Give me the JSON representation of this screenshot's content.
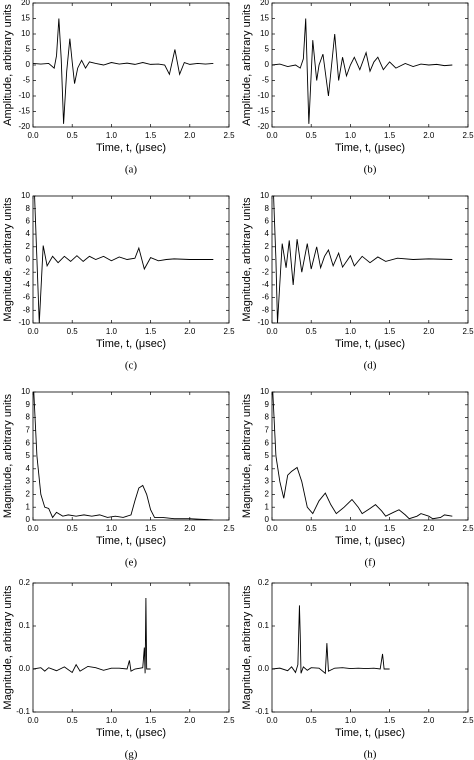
{
  "chart_data": [
    {
      "type": "line",
      "caption": "(a)",
      "xlabel": "Time, t, (μsec)",
      "ylabel": "Amplitude, arbitrary units",
      "color": "#000000",
      "x": [
        0,
        0.1,
        0.2,
        0.27,
        0.3,
        0.33,
        0.36,
        0.39,
        0.43,
        0.47,
        0.5,
        0.53,
        0.57,
        0.62,
        0.67,
        0.72,
        0.8,
        0.9,
        1.0,
        1.1,
        1.2,
        1.3,
        1.4,
        1.5,
        1.6,
        1.68,
        1.74,
        1.81,
        1.87,
        1.93,
        2.0,
        2.1,
        2.2,
        2.3
      ],
      "values": [
        0.5,
        0.3,
        0.5,
        -1,
        3,
        15,
        2,
        -19,
        -2,
        8.5,
        1,
        -6,
        -1,
        1.5,
        -1,
        1,
        0.5,
        0,
        0.8,
        0.3,
        0.6,
        0.2,
        0.8,
        0.2,
        0.3,
        0,
        -3,
        5,
        -3,
        0.8,
        0.2,
        0.5,
        0.3,
        0.5
      ],
      "xlim": [
        0,
        2.5
      ],
      "xticks": [
        {
          "value": 0,
          "label": "0.0"
        },
        0.5,
        {
          "value": 1,
          "label": "1.0"
        },
        1.5,
        {
          "value": 2,
          "label": "2.0"
        },
        2.5
      ],
      "ylim": [
        -20,
        20
      ],
      "yticks": [
        -20,
        -15,
        -10,
        -5,
        0,
        5,
        10,
        15,
        20
      ]
    },
    {
      "type": "line",
      "caption": "(b)",
      "xlabel": "Time, t, (μsec)",
      "ylabel": "Amplitude, arbitrary units",
      "color": "#000000",
      "x": [
        0,
        0.1,
        0.2,
        0.3,
        0.36,
        0.4,
        0.43,
        0.47,
        0.52,
        0.57,
        0.6,
        0.65,
        0.72,
        0.76,
        0.8,
        0.85,
        0.9,
        0.95,
        1.0,
        1.05,
        1.12,
        1.2,
        1.25,
        1.3,
        1.35,
        1.42,
        1.5,
        1.58,
        1.7,
        1.8,
        1.9,
        2.0,
        2.1,
        2.2,
        2.3
      ],
      "values": [
        0,
        0.3,
        -0.5,
        0,
        -1,
        2,
        15,
        -19,
        8,
        -5,
        0,
        3.5,
        -10,
        0,
        10,
        -5,
        2.5,
        -3.5,
        0,
        2.5,
        -1.5,
        4,
        -2,
        1,
        2.5,
        -1.5,
        1,
        -1,
        0.5,
        -0.5,
        0.3,
        0,
        0.2,
        -0.2,
        0
      ],
      "xlim": [
        0,
        2.5
      ],
      "xticks": [
        {
          "value": 0,
          "label": "0.0"
        },
        0.5,
        {
          "value": 1,
          "label": "1.0"
        },
        1.5,
        {
          "value": 2,
          "label": "2.0"
        },
        2.5
      ],
      "ylim": [
        -20,
        20
      ],
      "yticks": [
        -20,
        -15,
        -10,
        -5,
        0,
        5,
        10,
        15,
        20
      ]
    },
    {
      "type": "line",
      "caption": "(c)",
      "xlabel": "Time, t, (μsec)",
      "ylabel": "Magnitude, arbitrary units",
      "color": "#000000",
      "x": [
        0.02,
        0.05,
        0.08,
        0.13,
        0.18,
        0.25,
        0.32,
        0.4,
        0.48,
        0.56,
        0.64,
        0.72,
        0.8,
        0.9,
        1.0,
        1.1,
        1.2,
        1.3,
        1.35,
        1.42,
        1.5,
        1.6,
        1.7,
        1.8,
        2.0,
        2.3
      ],
      "values": [
        10,
        0,
        -10,
        2.2,
        -1,
        0.5,
        -0.5,
        0.5,
        -0.3,
        0.6,
        -0.3,
        0.5,
        0,
        0.5,
        -0.2,
        0.4,
        0,
        0.2,
        1.8,
        -1.5,
        0.3,
        -0.2,
        0,
        0.1,
        0,
        0
      ],
      "xlim": [
        0,
        2.5
      ],
      "xticks": [
        {
          "value": 0,
          "label": "0.0"
        },
        0.5,
        {
          "value": 1,
          "label": "1.0"
        },
        1.5,
        {
          "value": 2,
          "label": "2.0"
        },
        2.5
      ],
      "ylim": [
        -10,
        10
      ],
      "yticks": [
        -10,
        -8,
        -6,
        -4,
        -2,
        0,
        2,
        4,
        6,
        8,
        10
      ]
    },
    {
      "type": "line",
      "caption": "(d)",
      "xlabel": "Time, t, (μsec)",
      "ylabel": "Magnitude, arbitrary units",
      "color": "#000000",
      "x": [
        0.02,
        0.05,
        0.07,
        0.13,
        0.18,
        0.22,
        0.27,
        0.32,
        0.38,
        0.45,
        0.5,
        0.57,
        0.62,
        0.67,
        0.72,
        0.78,
        0.85,
        0.9,
        1.0,
        1.05,
        1.15,
        1.25,
        1.35,
        1.45,
        1.6,
        1.8,
        2.0,
        2.3
      ],
      "values": [
        10,
        0,
        -10,
        2.5,
        -1.3,
        3,
        -4,
        3.2,
        -2,
        2.5,
        -1.5,
        2,
        -1.3,
        0.5,
        1.5,
        -1,
        1,
        -1.2,
        0.6,
        -1,
        0.5,
        -0.5,
        0.4,
        -0.3,
        0.2,
        0,
        0.1,
        0
      ],
      "xlim": [
        0,
        2.5
      ],
      "xticks": [
        {
          "value": 0,
          "label": "0.0"
        },
        0.5,
        {
          "value": 1,
          "label": "1.0"
        },
        1.5,
        {
          "value": 2,
          "label": "2.0"
        },
        2.5
      ],
      "ylim": [
        -10,
        10
      ],
      "yticks": [
        -10,
        -8,
        -6,
        -4,
        -2,
        0,
        2,
        4,
        6,
        8,
        10
      ]
    },
    {
      "type": "line",
      "caption": "(e)",
      "xlabel": "Time, t, (μsec)",
      "ylabel": "Magnitude, arbitrary units",
      "color": "#000000",
      "x": [
        0.01,
        0.05,
        0.1,
        0.15,
        0.2,
        0.25,
        0.3,
        0.38,
        0.45,
        0.55,
        0.65,
        0.75,
        0.85,
        0.95,
        1.05,
        1.15,
        1.25,
        1.3,
        1.35,
        1.4,
        1.45,
        1.5,
        1.55,
        1.65,
        1.8,
        2.0,
        2.3
      ],
      "values": [
        10,
        5,
        2,
        1,
        0.9,
        0.2,
        0.6,
        0.3,
        0.4,
        0.3,
        0.4,
        0.3,
        0.4,
        0.2,
        0.3,
        0.2,
        0.4,
        1.5,
        2.5,
        2.7,
        2,
        0.8,
        0.2,
        0.2,
        0.1,
        0.1,
        0
      ],
      "xlim": [
        0,
        2.5
      ],
      "xticks": [
        {
          "value": 0,
          "label": "0.0"
        },
        0.5,
        {
          "value": 1,
          "label": "1.0"
        },
        1.5,
        {
          "value": 2,
          "label": "2.0"
        },
        2.5
      ],
      "ylim": [
        0,
        10
      ],
      "yticks": [
        0,
        1,
        2,
        3,
        4,
        5,
        6,
        7,
        8,
        9,
        10
      ]
    },
    {
      "type": "line",
      "caption": "(f)",
      "xlabel": "Time, t, (μsec)",
      "ylabel": "Magnitude, arbitrary units",
      "color": "#000000",
      "x": [
        0.01,
        0.05,
        0.1,
        0.15,
        0.2,
        0.25,
        0.32,
        0.38,
        0.45,
        0.52,
        0.6,
        0.68,
        0.75,
        0.82,
        0.92,
        1.02,
        1.1,
        1.15,
        1.25,
        1.32,
        1.4,
        1.45,
        1.55,
        1.62,
        1.7,
        1.75,
        1.85,
        1.9,
        2.0,
        2.05,
        2.15,
        2.2,
        2.3
      ],
      "values": [
        10,
        5,
        3,
        1.7,
        3.5,
        3.8,
        4.1,
        3,
        1,
        0.5,
        1.5,
        2.1,
        1.2,
        0.5,
        1,
        1.6,
        1,
        0.5,
        0.9,
        1.2,
        0.7,
        0.3,
        0.6,
        0.8,
        0.4,
        0.1,
        0.3,
        0.5,
        0.3,
        0.1,
        0.2,
        0.4,
        0.3
      ],
      "xlim": [
        0,
        2.5
      ],
      "xticks": [
        {
          "value": 0,
          "label": "0.0"
        },
        0.5,
        {
          "value": 1,
          "label": "1.0"
        },
        1.5,
        {
          "value": 2,
          "label": "2.0"
        },
        2.5
      ],
      "ylim": [
        0,
        10
      ],
      "yticks": [
        0,
        1,
        2,
        3,
        4,
        5,
        6,
        7,
        8,
        9,
        10
      ]
    },
    {
      "type": "line",
      "caption": "(g)",
      "xlabel": "Time, t, (μsec)",
      "ylabel": "Magnitude, arbitrary units",
      "color": "#000000",
      "x": [
        0,
        0.1,
        0.15,
        0.2,
        0.3,
        0.4,
        0.5,
        0.55,
        0.6,
        0.7,
        0.8,
        0.9,
        1.0,
        1.1,
        1.2,
        1.23,
        1.25,
        1.3,
        1.4,
        1.42,
        1.43,
        1.44,
        1.45,
        1.5
      ],
      "values": [
        0,
        0.003,
        -0.005,
        0.003,
        -0.004,
        0.005,
        -0.008,
        0.01,
        -0.005,
        0.006,
        0.003,
        -0.003,
        0.002,
        0.002,
        0,
        0.02,
        -0.005,
        0,
        0.003,
        0.05,
        -0.01,
        0.165,
        0,
        0
      ],
      "xlim": [
        0,
        2.5
      ],
      "xticks": [
        {
          "value": 0,
          "label": "0.0"
        },
        0.5,
        {
          "value": 1,
          "label": "1.0"
        },
        1.5,
        {
          "value": 2,
          "label": "2.0"
        },
        2.5
      ],
      "ylim": [
        -0.1,
        0.2
      ],
      "yticks": [
        -0.1,
        {
          "value": 0,
          "label": "0.0"
        },
        0.1,
        0.2
      ]
    },
    {
      "type": "line",
      "caption": "(h)",
      "xlabel": "Time, t, (μsec)",
      "ylabel": "Magnitude, arbitrary units",
      "color": "#000000",
      "x": [
        0,
        0.1,
        0.2,
        0.25,
        0.3,
        0.33,
        0.35,
        0.36,
        0.37,
        0.4,
        0.45,
        0.5,
        0.6,
        0.68,
        0.7,
        0.72,
        0.8,
        0.9,
        1.0,
        1.1,
        1.2,
        1.3,
        1.38,
        1.41,
        1.43,
        1.5
      ],
      "values": [
        0,
        0.002,
        -0.004,
        0.005,
        -0.008,
        0.01,
        0.148,
        0.08,
        -0.01,
        0.005,
        -0.003,
        0.003,
        0.002,
        -0.01,
        0.06,
        -0.005,
        0.002,
        0.003,
        0.001,
        0.002,
        0.001,
        0.002,
        0,
        0.035,
        0,
        0
      ],
      "xlim": [
        0,
        2.5
      ],
      "xticks": [
        {
          "value": 0,
          "label": "0.0"
        },
        0.5,
        {
          "value": 1,
          "label": "1.0"
        },
        1.5,
        {
          "value": 2,
          "label": "2.0"
        },
        2.5
      ],
      "ylim": [
        -0.1,
        0.2
      ],
      "yticks": [
        -0.1,
        {
          "value": 0,
          "label": "0.0"
        },
        0.1,
        0.2
      ]
    }
  ]
}
